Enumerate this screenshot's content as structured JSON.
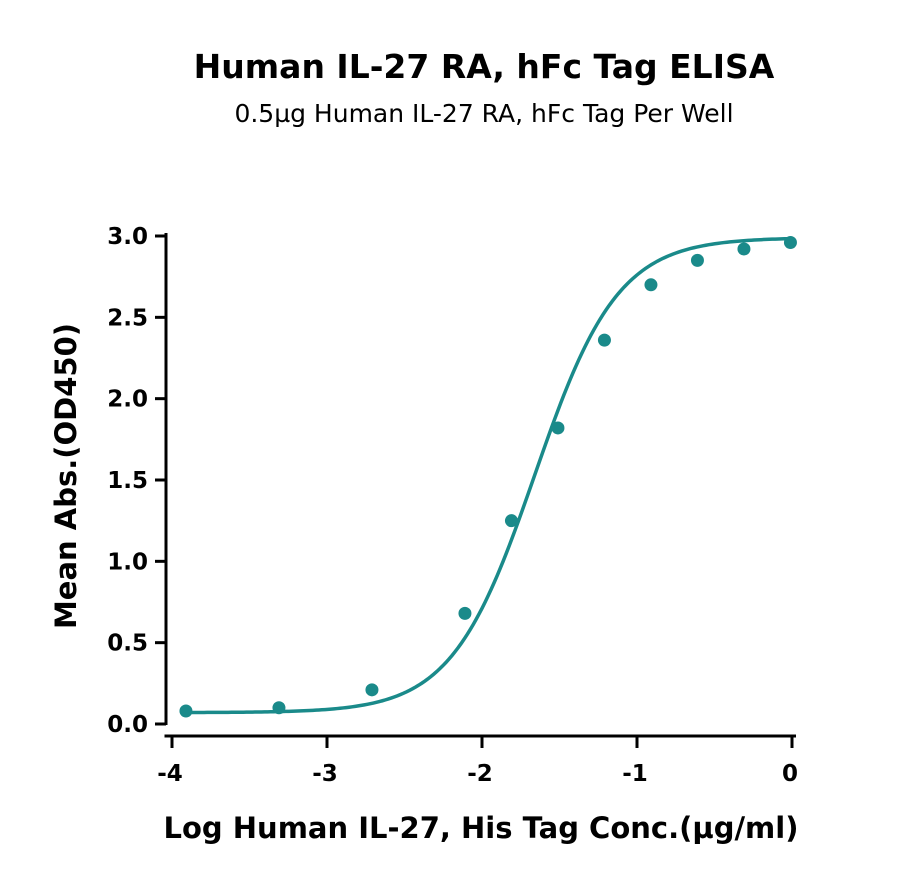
{
  "colors": {
    "series": "#1a8a8a",
    "axis": "#000000",
    "background": "#ffffff"
  },
  "chart_data": {
    "type": "line",
    "title": "Human IL-27 RA, hFc Tag ELISA",
    "subtitle": "0.5µg Human IL-27 RA, hFc Tag Per Well",
    "xlabel": "Log Human IL-27, His Tag Conc.(µg/ml)",
    "ylabel": "Mean Abs.(OD450)",
    "xlim": [
      -4,
      0
    ],
    "ylim": [
      0,
      3
    ],
    "xticks": [
      -4,
      -3,
      -2,
      -1,
      0
    ],
    "xtick_labels": [
      "-4",
      "-3",
      "-2",
      "-1",
      "0"
    ],
    "yticks": [
      0,
      0.5,
      1,
      1.5,
      2,
      2.5,
      3
    ],
    "ytick_labels": [
      "0.0",
      "0.5",
      "1.0",
      "1.5",
      "2.0",
      "2.5",
      "3.0"
    ],
    "grid": false,
    "legend": "none",
    "series": [
      {
        "x": [
          -3.91,
          -3.31,
          -2.71,
          -2.11,
          -1.81,
          -1.51,
          -1.21,
          -0.91,
          -0.61,
          -0.31,
          -0.01
        ],
        "y": [
          0.08,
          0.1,
          0.21,
          0.68,
          1.25,
          1.82,
          2.36,
          2.7,
          2.85,
          2.92,
          2.96
        ]
      }
    ],
    "fit_curve": {
      "model": "4PL",
      "bottom": 0.07,
      "top": 2.99,
      "log_ec50": -1.66,
      "hill_slope": 1.62
    }
  }
}
